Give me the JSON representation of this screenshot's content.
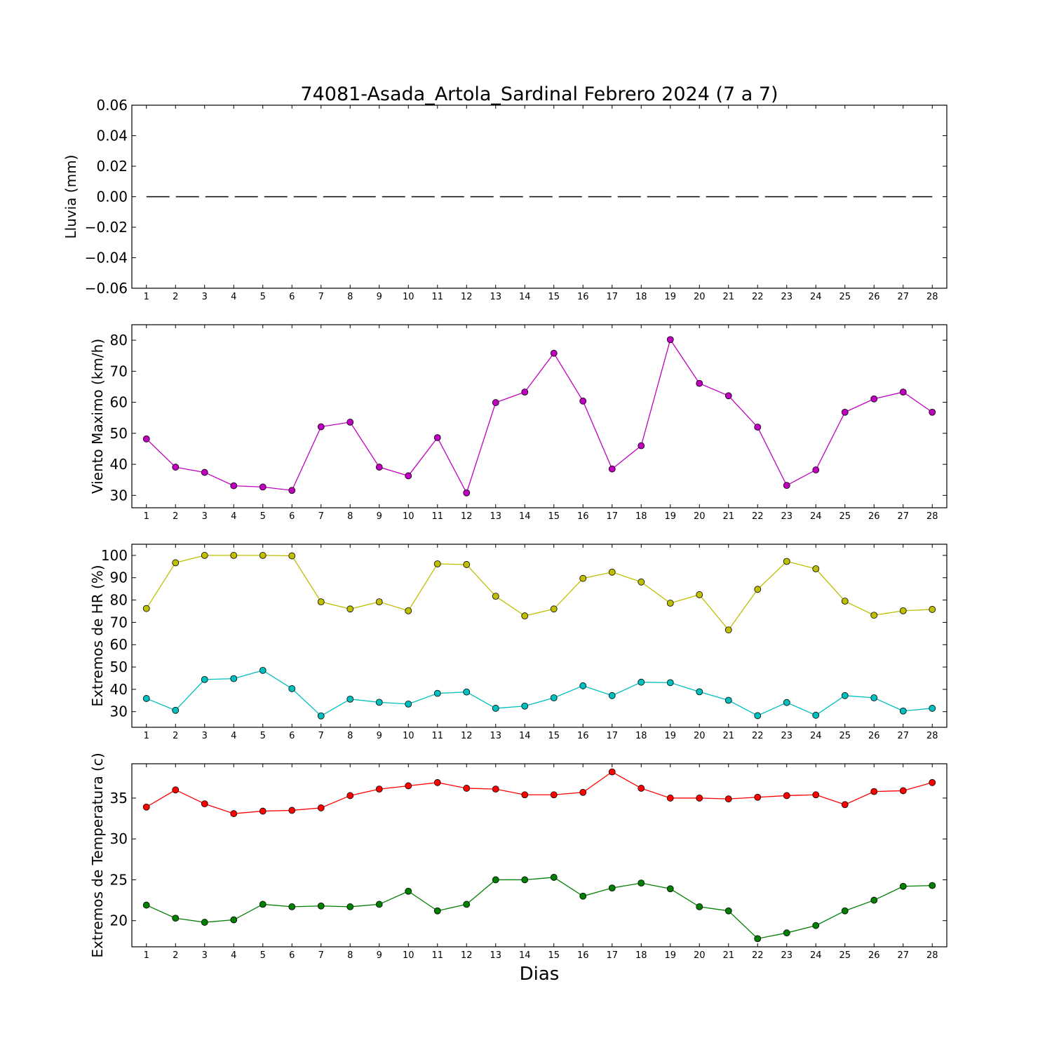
{
  "figure": {
    "title": "74081-Asada_Artola_Sardinal Febrero 2024  (7 a 7)",
    "xlabel": "Dias"
  },
  "chart_data": [
    {
      "type": "line",
      "ylabel": "Lluvia (mm)",
      "ylim": [
        -0.06,
        0.06
      ],
      "yticks": [
        -0.06,
        -0.04,
        -0.02,
        0.0,
        0.02,
        0.04,
        0.06
      ],
      "ytick_labels": [
        "−0.06",
        "−0.04",
        "−0.02",
        "0.00",
        "0.02",
        "0.04",
        "0.06"
      ],
      "x": [
        1,
        2,
        3,
        4,
        5,
        6,
        7,
        8,
        9,
        10,
        11,
        12,
        13,
        14,
        15,
        16,
        17,
        18,
        19,
        20,
        21,
        22,
        23,
        24,
        25,
        26,
        27,
        28
      ],
      "xlim": [
        0.5,
        28.5
      ],
      "series": [
        {
          "color": "#000000",
          "style": "dashed",
          "values": [
            0,
            0,
            0,
            0,
            0,
            0,
            0,
            0,
            0,
            0,
            0,
            0,
            0,
            0,
            0,
            0,
            0,
            0,
            0,
            0,
            0,
            0,
            0,
            0,
            0,
            0,
            0,
            0
          ]
        }
      ]
    },
    {
      "type": "line",
      "ylabel": "Viento Maximo (km/h)",
      "ylim": [
        26,
        85
      ],
      "yticks": [
        30,
        40,
        50,
        60,
        70,
        80
      ],
      "ytick_labels": [
        "30",
        "40",
        "50",
        "60",
        "70",
        "80"
      ],
      "x": [
        1,
        2,
        3,
        4,
        5,
        6,
        7,
        8,
        9,
        10,
        11,
        12,
        13,
        14,
        15,
        16,
        17,
        18,
        19,
        20,
        21,
        22,
        23,
        24,
        25,
        26,
        27,
        28
      ],
      "xlim": [
        0.5,
        28.5
      ],
      "series": [
        {
          "color": "#bf00bf",
          "style": "marker-line",
          "values": [
            48.2,
            39.1,
            37.4,
            33.1,
            32.7,
            31.6,
            52.1,
            53.6,
            39.1,
            36.3,
            48.6,
            30.8,
            59.9,
            63.3,
            75.8,
            60.4,
            38.5,
            46.0,
            80.2,
            66.1,
            62.1,
            52.0,
            33.2,
            38.2,
            56.8,
            61.1,
            63.3,
            56.8
          ]
        }
      ]
    },
    {
      "type": "line",
      "ylabel": "Extremos de HR (%)",
      "ylim": [
        23,
        105
      ],
      "yticks": [
        30,
        40,
        50,
        60,
        70,
        80,
        90,
        100
      ],
      "ytick_labels": [
        "30",
        "40",
        "50",
        "60",
        "70",
        "80",
        "90",
        "100"
      ],
      "x": [
        1,
        2,
        3,
        4,
        5,
        6,
        7,
        8,
        9,
        10,
        11,
        12,
        13,
        14,
        15,
        16,
        17,
        18,
        19,
        20,
        21,
        22,
        23,
        24,
        25,
        26,
        27,
        28
      ],
      "xlim": [
        0.5,
        28.5
      ],
      "series": [
        {
          "color": "#bfbf00",
          "style": "marker-line",
          "values": [
            76.2,
            96.7,
            100,
            100,
            100,
            99.8,
            79.2,
            76.0,
            79.2,
            75.2,
            96.2,
            95.9,
            81.7,
            72.9,
            76.0,
            89.7,
            92.5,
            88.1,
            78.6,
            82.4,
            66.6,
            84.8,
            97.3,
            94.0,
            79.5,
            73.2,
            75.2,
            75.8
          ]
        },
        {
          "color": "#00bfbf",
          "style": "marker-line",
          "values": [
            35.9,
            30.6,
            44.4,
            44.8,
            48.5,
            40.3,
            28.1,
            35.6,
            34.2,
            33.4,
            38.2,
            38.8,
            31.5,
            32.5,
            36.2,
            41.6,
            37.2,
            43.2,
            43.0,
            38.9,
            35.1,
            28.2,
            34.1,
            28.4,
            37.2,
            36.2,
            30.3,
            31.5
          ]
        }
      ]
    },
    {
      "type": "line",
      "ylabel": "Extremos de Temperatura (c)",
      "ylim": [
        16.8,
        39.2
      ],
      "yticks": [
        20,
        25,
        30,
        35
      ],
      "ytick_labels": [
        "20",
        "25",
        "30",
        "35"
      ],
      "x": [
        1,
        2,
        3,
        4,
        5,
        6,
        7,
        8,
        9,
        10,
        11,
        12,
        13,
        14,
        15,
        16,
        17,
        18,
        19,
        20,
        21,
        22,
        23,
        24,
        25,
        26,
        27,
        28
      ],
      "xlim": [
        0.5,
        28.5
      ],
      "series": [
        {
          "color": "#ff0000",
          "style": "marker-line",
          "values": [
            33.9,
            36.0,
            34.3,
            33.1,
            33.4,
            33.5,
            33.8,
            35.3,
            36.1,
            36.5,
            36.9,
            36.2,
            36.1,
            35.4,
            35.4,
            35.7,
            38.2,
            36.2,
            35.0,
            35.0,
            34.9,
            35.1,
            35.3,
            35.4,
            34.2,
            35.8,
            35.9,
            36.9
          ]
        },
        {
          "color": "#007f00",
          "style": "marker-line",
          "values": [
            21.9,
            20.3,
            19.8,
            20.1,
            22.0,
            21.7,
            21.8,
            21.7,
            22.0,
            23.6,
            21.2,
            22.0,
            25.0,
            25.0,
            25.3,
            23.0,
            24.0,
            24.6,
            23.9,
            21.7,
            21.2,
            17.8,
            18.5,
            19.4,
            21.2,
            22.5,
            24.2,
            24.3
          ]
        }
      ]
    }
  ]
}
